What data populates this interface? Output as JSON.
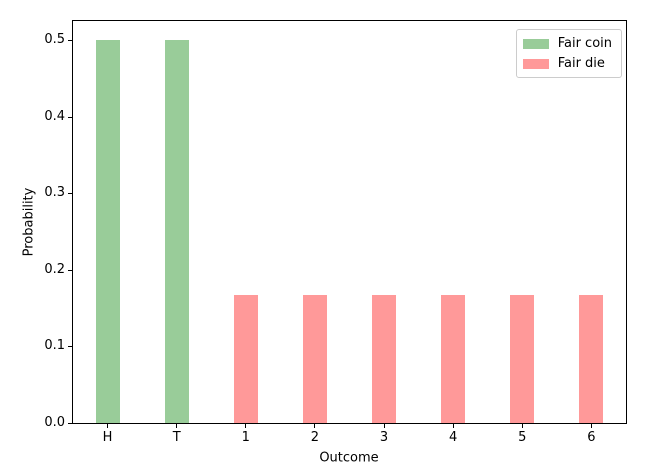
{
  "chart_data": {
    "type": "bar",
    "title": "",
    "xlabel": "Outcome",
    "ylabel": "Probability",
    "categories": [
      "H",
      "T",
      "1",
      "2",
      "3",
      "4",
      "5",
      "6"
    ],
    "series": [
      {
        "name": "Fair coin",
        "color": "#99cc99",
        "values": [
          0.5,
          0.5,
          null,
          null,
          null,
          null,
          null,
          null
        ]
      },
      {
        "name": "Fair die",
        "color": "#ff9999",
        "values": [
          null,
          null,
          0.167,
          0.167,
          0.167,
          0.167,
          0.167,
          0.167
        ]
      }
    ],
    "yticks": [
      0.0,
      0.1,
      0.2,
      0.3,
      0.4,
      0.5
    ],
    "ytick_labels": [
      "0.0",
      "0.1",
      "0.2",
      "0.3",
      "0.4",
      "0.5"
    ],
    "ylim": [
      0,
      0.525
    ],
    "grid": false,
    "legend": {
      "position": "upper right",
      "entries": [
        "Fair coin",
        "Fair die"
      ]
    },
    "colors": {
      "fair_coin_bar": "#99cc99",
      "fair_die_bar": "#ff9999",
      "axis": "#000000",
      "legend_border": "#cccccc",
      "background": "#ffffff"
    }
  }
}
